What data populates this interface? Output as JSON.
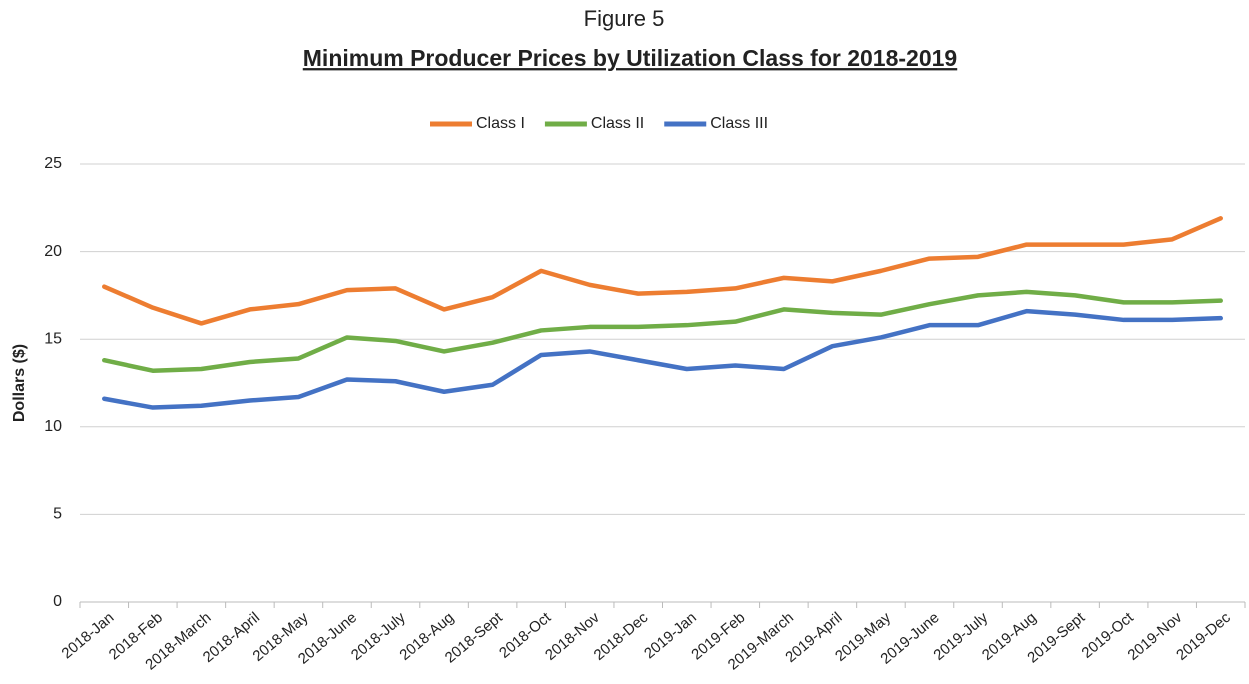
{
  "chart_data": {
    "type": "line",
    "figure_label": "Figure 5",
    "title": "Minimum Producer Prices by Utilization Class for 2018-2019",
    "y_label": "Dollars ($)",
    "categories": [
      "2018-Jan",
      "2018-Feb",
      "2018-March",
      "2018-April",
      "2018-May",
      "2018-June",
      "2018-July",
      "2018-Aug",
      "2018-Sept",
      "2018-Oct",
      "2018-Nov",
      "2018-Dec",
      "2019-Jan",
      "2019-Feb",
      "2019-March",
      "2019-April",
      "2019-May",
      "2019-June",
      "2019-July",
      "2019-Aug",
      "2019-Sept",
      "2019-Oct",
      "2019-Nov",
      "2019-Dec"
    ],
    "series": [
      {
        "name": "Class I",
        "color": "#ed7d31",
        "values": [
          18.0,
          16.8,
          15.9,
          16.7,
          17.0,
          17.8,
          17.9,
          16.7,
          17.4,
          18.9,
          18.1,
          17.6,
          17.7,
          17.9,
          18.5,
          18.3,
          18.9,
          19.6,
          19.7,
          20.4,
          20.4,
          20.4,
          20.7,
          21.9
        ]
      },
      {
        "name": "Class II",
        "color": "#70ad47",
        "values": [
          13.8,
          13.2,
          13.3,
          13.7,
          13.9,
          15.1,
          14.9,
          14.3,
          14.8,
          15.5,
          15.7,
          15.7,
          15.8,
          16.0,
          16.7,
          16.5,
          16.4,
          17.0,
          17.5,
          17.7,
          17.5,
          17.1,
          17.1,
          17.2
        ]
      },
      {
        "name": "Class III",
        "color": "#4472c4",
        "values": [
          11.6,
          11.1,
          11.2,
          11.5,
          11.7,
          12.7,
          12.6,
          12.0,
          12.4,
          14.1,
          14.3,
          13.8,
          13.3,
          13.5,
          13.3,
          14.6,
          15.1,
          15.8,
          15.8,
          16.6,
          16.4,
          16.1,
          16.1,
          16.2
        ]
      }
    ],
    "ylim": [
      0,
      25
    ],
    "yticks": [
      0,
      5,
      10,
      15,
      20,
      25
    ],
    "grid": true,
    "legend": "top"
  }
}
